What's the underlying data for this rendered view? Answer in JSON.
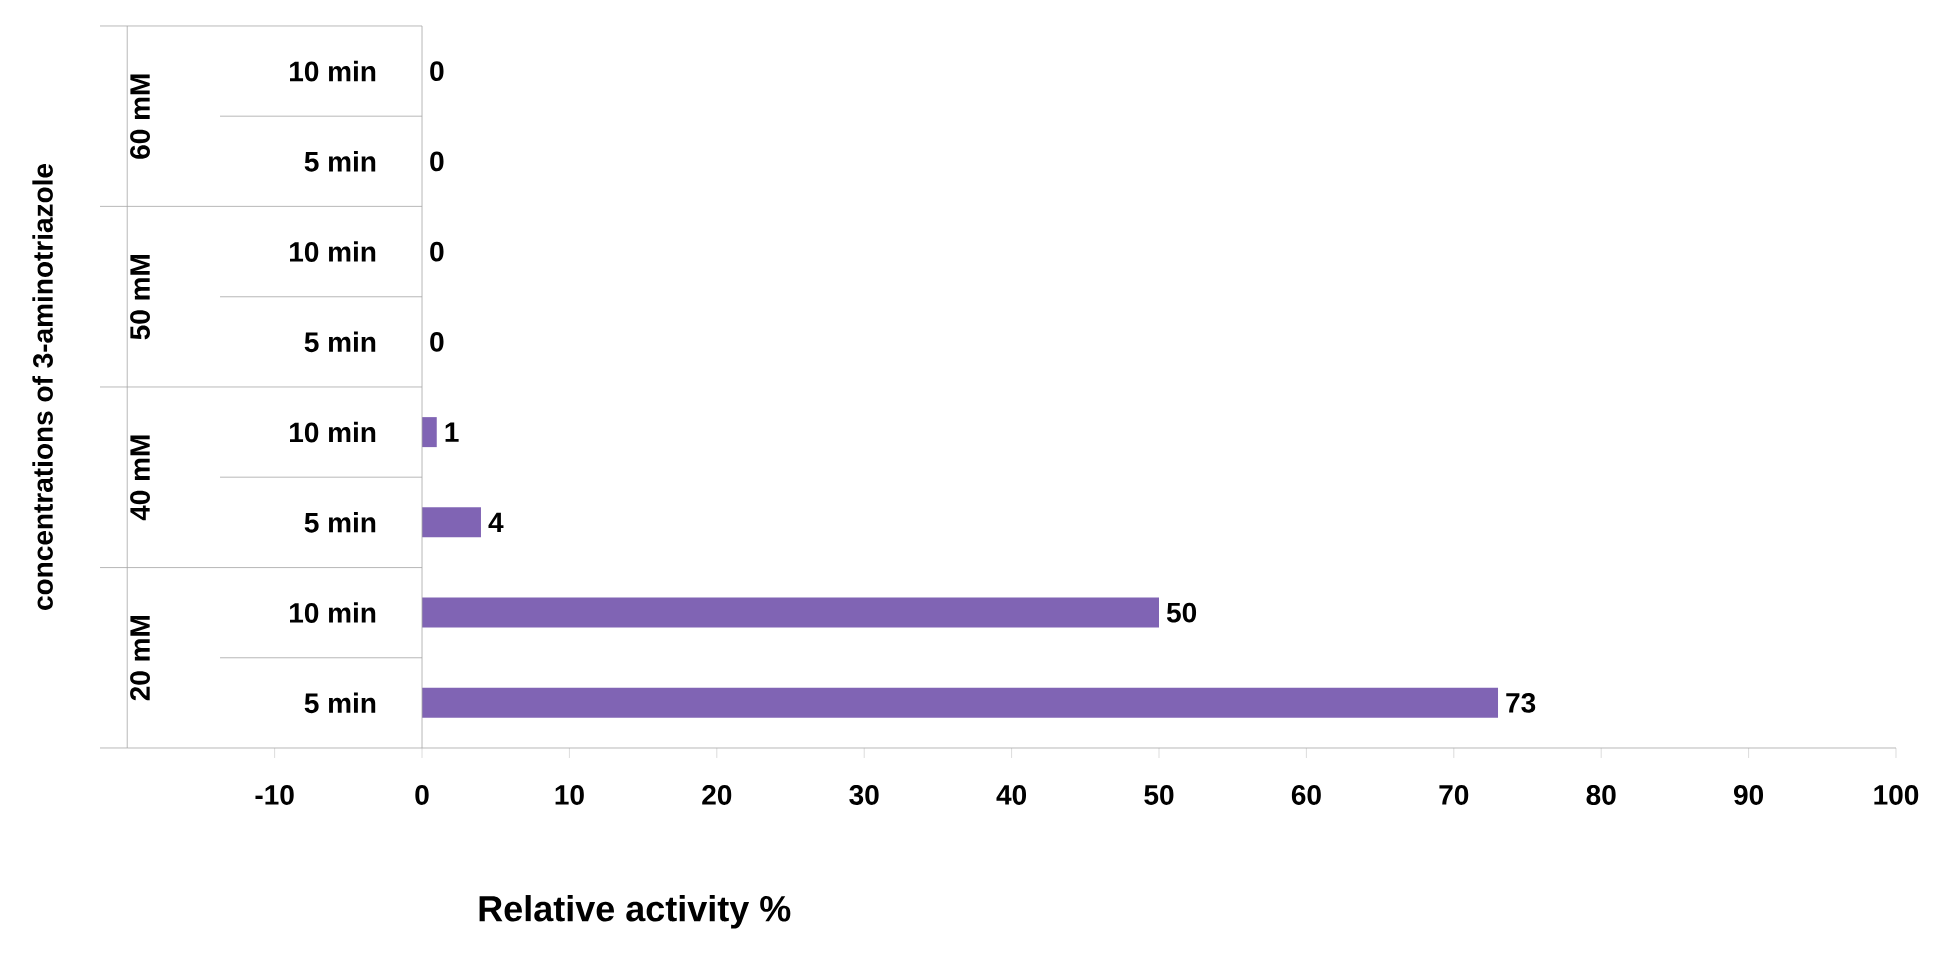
{
  "chart_data": {
    "type": "bar",
    "orientation": "horizontal",
    "categories": [
      "10 min",
      "5 min",
      "10 min",
      "5 min",
      "10 min",
      "5 min",
      "10 min",
      "5 min"
    ],
    "values": [
      0,
      0,
      0,
      0,
      1,
      4,
      50,
      73
    ],
    "color": "#8064b4",
    "data_labels": true,
    "xlabel": "Relative activity %",
    "ylabel": "concentrations of 3-aminotriazole",
    "annotations": [
      "60 mM",
      "50 mM",
      "40 mM",
      "20 mM"
    ],
    "xlim": [
      -20,
      100
    ],
    "xticks": [
      -10,
      0,
      10,
      20,
      30,
      40,
      50,
      60,
      70,
      80,
      90,
      100
    ],
    "grid": false
  }
}
